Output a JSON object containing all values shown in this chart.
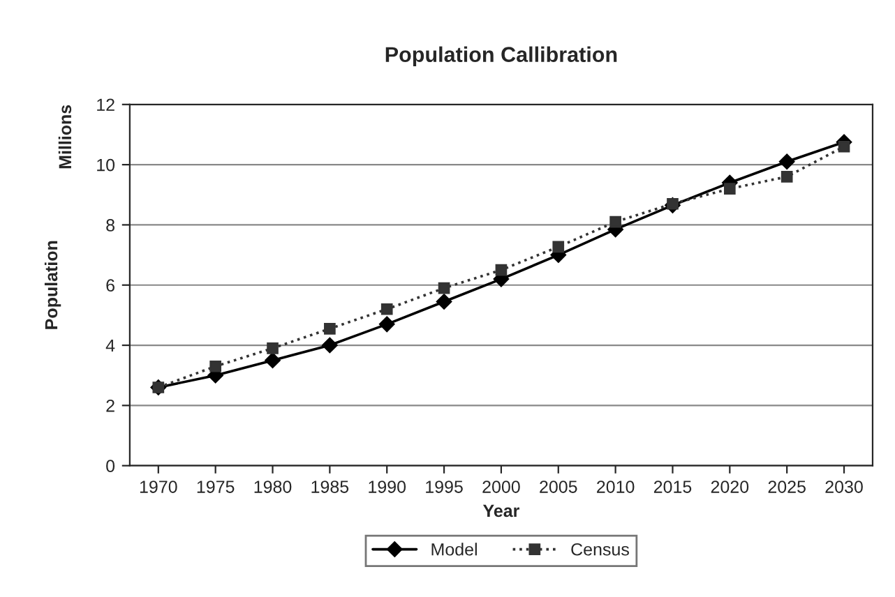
{
  "chart_data": {
    "type": "line",
    "title": "Population Callibration",
    "xlabel": "Year",
    "ylabel": "Population",
    "annotations": [
      "Millions"
    ],
    "categories": [
      "1970",
      "1975",
      "1980",
      "1985",
      "1990",
      "1995",
      "2000",
      "2005",
      "2010",
      "2015",
      "2020",
      "2025",
      "2030"
    ],
    "series": [
      {
        "name": "Model",
        "color": "#000000",
        "marker": "diamond",
        "line_style": "solid",
        "values": [
          2.6,
          3.0,
          3.5,
          4.0,
          4.7,
          5.45,
          6.2,
          7.0,
          7.85,
          8.65,
          9.4,
          10.1,
          10.75
        ]
      },
      {
        "name": "Census",
        "color": "#333333",
        "marker": "square",
        "line_style": "dotted",
        "values": [
          2.6,
          3.3,
          3.9,
          4.55,
          5.2,
          5.9,
          6.5,
          7.27,
          8.1,
          8.7,
          9.2,
          9.6,
          10.6
        ]
      }
    ],
    "ylim": [
      0,
      12
    ],
    "yticks": [
      0,
      2,
      4,
      6,
      8,
      10,
      12
    ],
    "grid": "y",
    "legend": "bottom"
  }
}
